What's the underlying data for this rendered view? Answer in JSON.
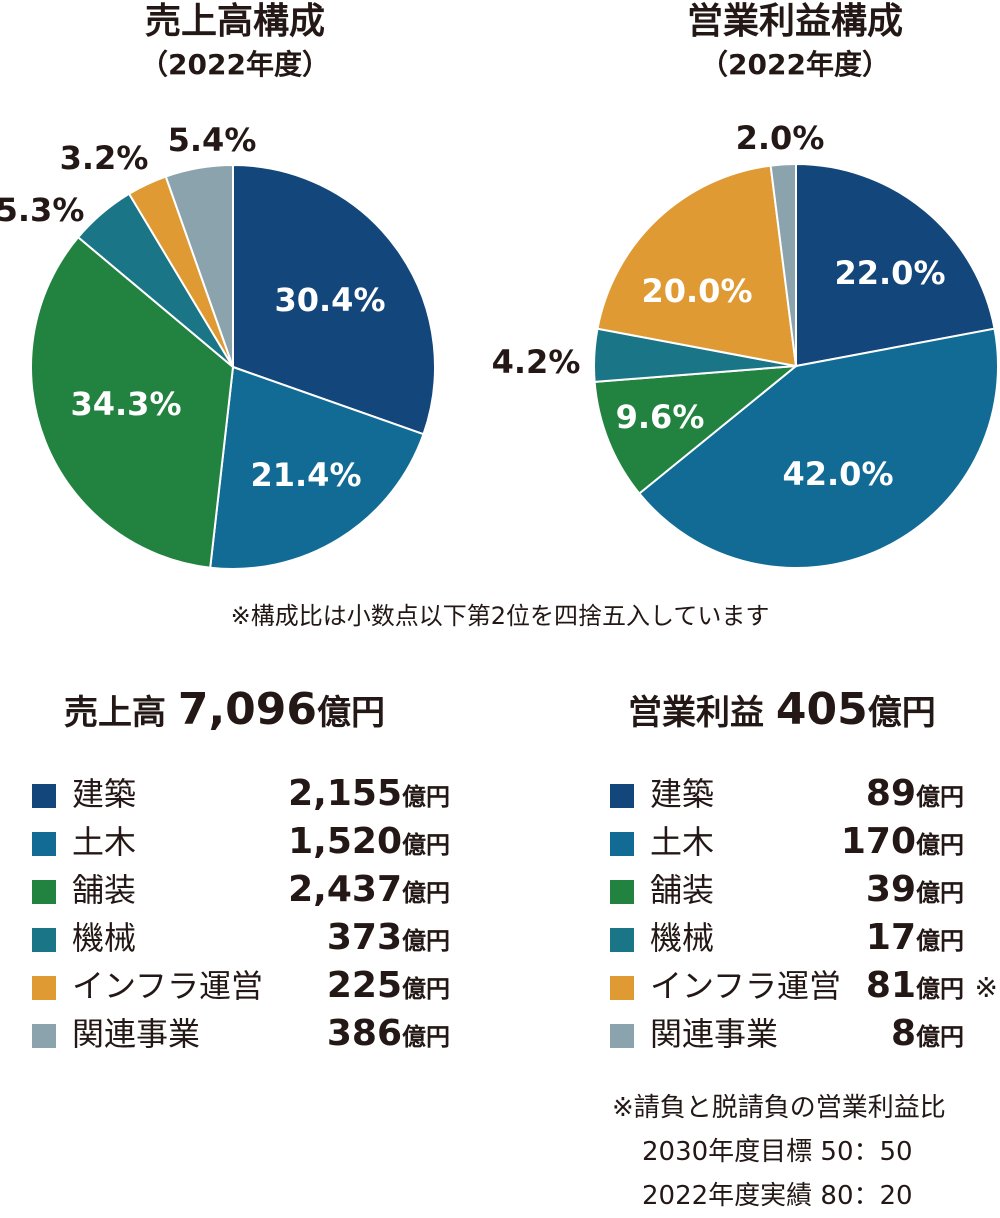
{
  "sales_chart": {
    "title": "売上高構成",
    "subtitle": "（2022年度）"
  },
  "profit_chart": {
    "title": "営業利益構成",
    "subtitle": "（2022年度）"
  },
  "colors": {
    "建築": "#13467b",
    "土木": "#126b94",
    "舗装": "#228340",
    "機械": "#1a7686",
    "インフラ運営": "#e09a33",
    "関連事業": "#8aa3ad"
  },
  "chart_data": [
    {
      "type": "pie",
      "title": "売上高構成",
      "subtitle": "（2022年度）",
      "categories": [
        "建築",
        "土木",
        "舗装",
        "機械",
        "インフラ運営",
        "関連事業"
      ],
      "values": [
        30.4,
        21.4,
        34.3,
        5.3,
        3.2,
        5.4
      ],
      "labels": [
        "30.4%",
        "21.4%",
        "34.3%",
        "5.3%",
        "3.2%",
        "5.4%"
      ]
    },
    {
      "type": "pie",
      "title": "営業利益構成",
      "subtitle": "（2022年度）",
      "categories": [
        "建築",
        "土木",
        "舗装",
        "機械",
        "インフラ運営",
        "関連事業"
      ],
      "values": [
        22.0,
        42.0,
        9.6,
        4.2,
        20.0,
        2.0
      ],
      "labels": [
        "22.0%",
        "42.0%",
        "9.6%",
        "4.2%",
        "20.0%",
        "2.0%"
      ]
    }
  ],
  "note": "※構成比は小数点以下第2位を四捨五入しています",
  "sales_summary": {
    "label": "売上高",
    "value": "7,096",
    "unit": "億円"
  },
  "profit_summary": {
    "label": "営業利益",
    "value": "405",
    "unit": "億円"
  },
  "sales_legend": [
    {
      "name": "建築",
      "value": "2,155",
      "unit": "億円",
      "mark": ""
    },
    {
      "name": "土木",
      "value": "1,520",
      "unit": "億円",
      "mark": ""
    },
    {
      "name": "舗装",
      "value": "2,437",
      "unit": "億円",
      "mark": ""
    },
    {
      "name": "機械",
      "value": "373",
      "unit": "億円",
      "mark": ""
    },
    {
      "name": "インフラ運営",
      "value": "225",
      "unit": "億円",
      "mark": ""
    },
    {
      "name": "関連事業",
      "value": "386",
      "unit": "億円",
      "mark": ""
    }
  ],
  "profit_legend": [
    {
      "name": "建築",
      "value": "89",
      "unit": "億円",
      "mark": ""
    },
    {
      "name": "土木",
      "value": "170",
      "unit": "億円",
      "mark": ""
    },
    {
      "name": "舗装",
      "value": "39",
      "unit": "億円",
      "mark": ""
    },
    {
      "name": "機械",
      "value": "17",
      "unit": "億円",
      "mark": ""
    },
    {
      "name": "インフラ運営",
      "value": "81",
      "unit": "億円",
      "mark": "※"
    },
    {
      "name": "関連事業",
      "value": "8",
      "unit": "億円",
      "mark": ""
    }
  ],
  "footnote": {
    "line1": "※請負と脱請負の営業利益比",
    "line2": "2030年度目標 50：50",
    "line3": "2022年度実績 80：20"
  }
}
